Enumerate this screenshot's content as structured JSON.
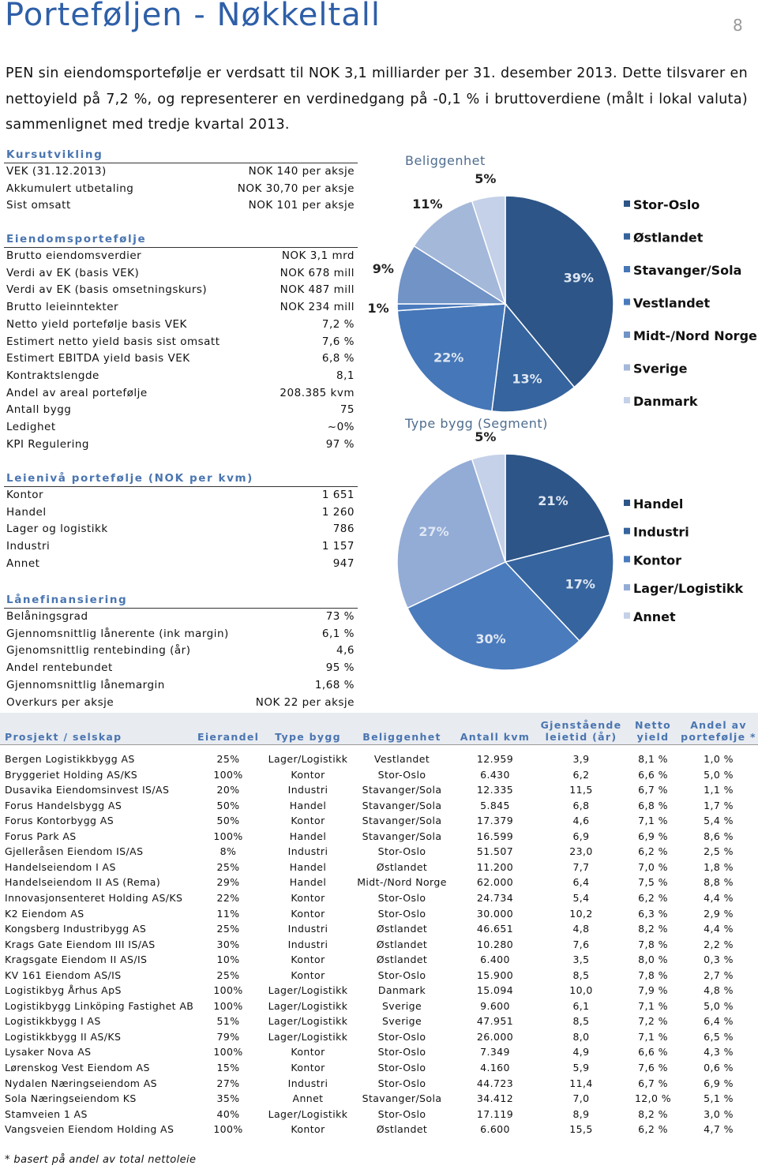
{
  "header": {
    "title": "Porteføljen - Nøkkeltall",
    "page": "8"
  },
  "intro": "PEN sin eiendomsportefølje er verdsatt til NOK 3,1 milliarder per 31. desember 2013. Dette tilsvarer en nettoyield på 7,2 %, og representerer en verdinedgang på -0,1 % i bruttoverdiene (målt i lokal valuta) sammenlignet med tredje kvartal 2013.",
  "sections": [
    {
      "heading": "Kursutvikling",
      "rows": [
        [
          "VEK (31.12.2013)",
          "NOK 140 per aksje"
        ],
        [
          "Akkumulert utbetaling",
          "NOK 30,70 per aksje"
        ],
        [
          "Sist omsatt",
          "NOK 101 per aksje"
        ]
      ]
    },
    {
      "heading": "Eiendomsportefølje",
      "rows": [
        [
          "Brutto eiendomsverdier",
          "NOK 3,1 mrd"
        ],
        [
          "Verdi av EK (basis VEK)",
          "NOK 678 mill"
        ],
        [
          "Verdi av EK (basis omsetningskurs)",
          "NOK 487 mill"
        ],
        [
          "Brutto leieinntekter",
          "NOK 234 mill"
        ],
        [
          "Netto yield portefølje basis VEK",
          "7,2 %"
        ],
        [
          "Estimert netto yield basis sist omsatt",
          "7,6 %"
        ],
        [
          "Estimert EBITDA yield basis VEK",
          "6,8 %"
        ],
        [
          "Kontraktslengde",
          "8,1"
        ],
        [
          "Andel av areal portefølje",
          "208.385 kvm"
        ],
        [
          "Antall bygg",
          "75"
        ],
        [
          "Ledighet",
          "~0%"
        ],
        [
          "KPI Regulering",
          "97 %"
        ]
      ]
    },
    {
      "heading": "Leienivå portefølje (NOK per kvm)",
      "rows": [
        [
          "Kontor",
          "1 651"
        ],
        [
          "Handel",
          "1 260"
        ],
        [
          "Lager og logistikk",
          "786"
        ],
        [
          "Industri",
          "1 157"
        ],
        [
          "Annet",
          "947"
        ]
      ]
    },
    {
      "heading": "Lånefinansiering",
      "rows": [
        [
          "Belåningsgrad",
          "73 %"
        ],
        [
          "Gjennomsnittlig lånerente (ink margin)",
          "6,1 %"
        ],
        [
          "Gjenomsnittlig rentebinding (år)",
          "4,6"
        ],
        [
          "Andel rentebundet",
          "95 %"
        ],
        [
          "Gjennomsnittlig lånemargin",
          "1,68 %"
        ],
        [
          "Overkurs per aksje",
          "NOK 22 per aksje"
        ]
      ]
    }
  ],
  "chart_data": [
    {
      "type": "pie",
      "title": "Beliggenhet",
      "categories": [
        "Stor-Oslo",
        "Østlandet",
        "Stavanger/Sola",
        "Vestlandet",
        "Midt-/Nord Norge",
        "Sverige",
        "Danmark"
      ],
      "values": [
        39,
        13,
        22,
        1,
        9,
        11,
        5
      ],
      "value_labels": [
        "39%",
        "13%",
        "22%",
        "1%",
        "9%",
        "11%",
        "5%"
      ],
      "colors": [
        "#2d5587",
        "#36649e",
        "#4677b8",
        "#4a7bbd",
        "#7193c6",
        "#a4b8da",
        "#c5d1e8"
      ]
    },
    {
      "type": "pie",
      "title": "Type bygg (Segment)",
      "categories": [
        "Handel",
        "Industri",
        "Kontor",
        "Lager/Logistikk",
        "Annet"
      ],
      "values": [
        21,
        17,
        30,
        27,
        5
      ],
      "value_labels": [
        "21%",
        "17%",
        "30%",
        "27%",
        "5%"
      ],
      "colors": [
        "#2d5587",
        "#36649e",
        "#4a7bbd",
        "#93acd6",
        "#c5d1e8"
      ]
    }
  ],
  "table": {
    "columns": [
      "Prosjekt / selskap",
      "Eierandel",
      "Type bygg",
      "Beliggenhet",
      "Antall kvm",
      "Gjenstående leietid (år)",
      "Netto yield",
      "Andel av portefølje *"
    ],
    "rows": [
      [
        "Bergen Logistikkbygg AS",
        "25%",
        "Lager/Logistikk",
        "Vestlandet",
        "12.959",
        "3,9",
        "8,1 %",
        "1,0 %"
      ],
      [
        "Bryggeriet Holding AS/KS",
        "100%",
        "Kontor",
        "Stor-Oslo",
        "6.430",
        "6,2",
        "6,6 %",
        "5,0 %"
      ],
      [
        "Dusavika Eiendomsinvest IS/AS",
        "20%",
        "Industri",
        "Stavanger/Sola",
        "12.335",
        "11,5",
        "6,7 %",
        "1,1 %"
      ],
      [
        "Forus Handelsbygg AS",
        "50%",
        "Handel",
        "Stavanger/Sola",
        "5.845",
        "6,8",
        "6,8 %",
        "1,7 %"
      ],
      [
        "Forus Kontorbygg AS",
        "50%",
        "Kontor",
        "Stavanger/Sola",
        "17.379",
        "4,6",
        "7,1 %",
        "5,4 %"
      ],
      [
        "Forus Park AS",
        "100%",
        "Handel",
        "Stavanger/Sola",
        "16.599",
        "6,9",
        "6,9 %",
        "8,6 %"
      ],
      [
        "Gjelleråsen Eiendom IS/AS",
        "8%",
        "Industri",
        "Stor-Oslo",
        "51.507",
        "23,0",
        "6,2 %",
        "2,5 %"
      ],
      [
        "Handelseiendom I AS",
        "25%",
        "Handel",
        "Østlandet",
        "11.200",
        "7,7",
        "7,0 %",
        "1,8 %"
      ],
      [
        "Handelseiendom II AS (Rema)",
        "29%",
        "Handel",
        "Midt-/Nord Norge",
        "62.000",
        "6,4",
        "7,5 %",
        "8,8 %"
      ],
      [
        "Innovasjonsenteret Holding AS/KS",
        "22%",
        "Kontor",
        "Stor-Oslo",
        "24.734",
        "5,4",
        "6,2 %",
        "4,4 %"
      ],
      [
        "K2 Eiendom AS",
        "11%",
        "Kontor",
        "Stor-Oslo",
        "30.000",
        "10,2",
        "6,3 %",
        "2,9 %"
      ],
      [
        "Kongsberg Industribygg AS",
        "25%",
        "Industri",
        "Østlandet",
        "46.651",
        "4,8",
        "8,2 %",
        "4,4 %"
      ],
      [
        "Krags Gate Eiendom III IS/AS",
        "30%",
        "Industri",
        "Østlandet",
        "10.280",
        "7,6",
        "7,8 %",
        "2,2 %"
      ],
      [
        "Kragsgate Eiendom II AS/IS",
        "10%",
        "Kontor",
        "Østlandet",
        "6.400",
        "3,5",
        "8,0 %",
        "0,3 %"
      ],
      [
        "KV 161 Eiendom AS/IS",
        "25%",
        "Kontor",
        "Stor-Oslo",
        "15.900",
        "8,5",
        "7,8 %",
        "2,7 %"
      ],
      [
        "Logistikbyg Århus ApS",
        "100%",
        "Lager/Logistikk",
        "Danmark",
        "15.094",
        "10,0",
        "7,9 %",
        "4,8 %"
      ],
      [
        "Logistikbygg Linköping Fastighet AB",
        "100%",
        "Lager/Logistikk",
        "Sverige",
        "9.600",
        "6,1",
        "7,1 %",
        "5,0 %"
      ],
      [
        "Logistikkbygg I AS",
        "51%",
        "Lager/Logistikk",
        "Sverige",
        "47.951",
        "8,5",
        "7,2 %",
        "6,4 %"
      ],
      [
        "Logistikkbygg II AS/KS",
        "79%",
        "Lager/Logistikk",
        "Stor-Oslo",
        "26.000",
        "8,0",
        "7,1 %",
        "6,5 %"
      ],
      [
        "Lysaker Nova AS",
        "100%",
        "Kontor",
        "Stor-Oslo",
        "7.349",
        "4,9",
        "6,6 %",
        "4,3 %"
      ],
      [
        "Lørenskog Vest Eiendom AS",
        "15%",
        "Kontor",
        "Stor-Oslo",
        "4.160",
        "5,9",
        "7,6 %",
        "0,6 %"
      ],
      [
        "Nydalen Næringseiendom AS",
        "27%",
        "Industri",
        "Stor-Oslo",
        "44.723",
        "11,4",
        "6,7 %",
        "6,9 %"
      ],
      [
        "Sola Næringseiendom KS",
        "35%",
        "Annet",
        "Stavanger/Sola",
        "34.412",
        "7,0",
        "12,0 %",
        "5,1 %"
      ],
      [
        "Stamveien 1 AS",
        "40%",
        "Lager/Logistikk",
        "Stor-Oslo",
        "17.119",
        "8,9",
        "8,2 %",
        "3,0 %"
      ],
      [
        "Vangsveien Eiendom Holding AS",
        "100%",
        "Kontor",
        "Østlandet",
        "6.600",
        "15,5",
        "6,2 %",
        "4,7 %"
      ]
    ]
  },
  "footnote": "* basert på andel av total nettoleie"
}
